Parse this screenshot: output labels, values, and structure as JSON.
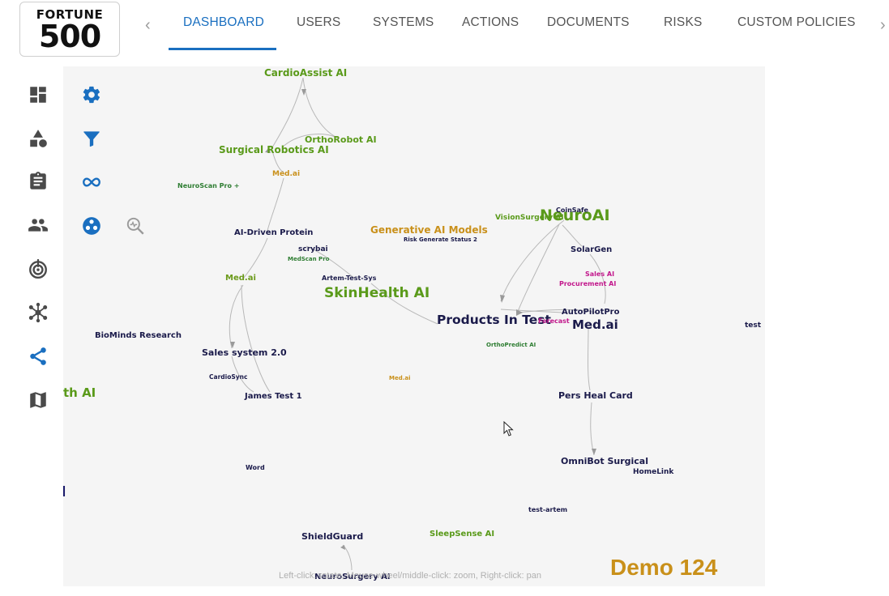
{
  "logo": {
    "line1": "FORTUNE",
    "line2": "500"
  },
  "tabs": [
    {
      "label": "DASHBOARD",
      "active": true
    },
    {
      "label": "USERS"
    },
    {
      "label": "SYSTEMS"
    },
    {
      "label": "ACTIONS"
    },
    {
      "label": "DOCUMENTS"
    },
    {
      "label": "RISKS"
    },
    {
      "label": "CUSTOM POLICIES"
    }
  ],
  "sidebar": {
    "items": [
      {
        "icon": "dashboard-icon"
      },
      {
        "icon": "shapes-icon"
      },
      {
        "icon": "clipboard-icon"
      },
      {
        "icon": "people-icon"
      },
      {
        "icon": "target-icon"
      },
      {
        "icon": "network-icon"
      },
      {
        "icon": "share-icon",
        "active": true
      },
      {
        "icon": "map-icon"
      }
    ]
  },
  "toolbar": {
    "tools": [
      {
        "icon": "gear-icon"
      },
      {
        "icon": "filter-icon"
      },
      {
        "icon": "infinity-icon"
      },
      {
        "icon": "cluster-icon"
      },
      {
        "icon": "zoom-analyze-icon"
      }
    ]
  },
  "graph": {
    "nodes": [
      {
        "label": "CardioAssist AI",
        "color": "#5a9a1a"
      },
      {
        "label": "OrthoRobot AI",
        "color": "#5a9a1a"
      },
      {
        "label": "Surgical Robotics AI",
        "color": "#5a9a1a"
      },
      {
        "label": "Med.ai",
        "color": "#c9901a"
      },
      {
        "label": "NeuroScan Pro +",
        "color": "#2e7d32"
      },
      {
        "label": "AI-Driven Protein",
        "color": "#1a1a4a"
      },
      {
        "label": "scrybai",
        "color": "#1a1a4a"
      },
      {
        "label": "MedScan Pro",
        "color": "#2e7d32"
      },
      {
        "label": "Artem-Test-Sys",
        "color": "#1a1a4a"
      },
      {
        "label": "Med.ai",
        "color": "#6b9a1a"
      },
      {
        "label": "SkinHealth AI",
        "color": "#5a9a1a"
      },
      {
        "label": "Generative AI Models",
        "color": "#c9901a"
      },
      {
        "label": "Risk Generate Status 2",
        "color": "#1a1a4a"
      },
      {
        "label": "VisionSurgery AI",
        "color": "#5a9a1a"
      },
      {
        "label": "NeuroAI",
        "color": "#5a9a1a"
      },
      {
        "label": "CoinSafe",
        "color": "#1a1a4a"
      },
      {
        "label": "SolarGen",
        "color": "#1a1a4a"
      },
      {
        "label": "Sales AI",
        "color": "#c2188c"
      },
      {
        "label": "Procurement AI",
        "color": "#c2188c"
      },
      {
        "label": "AutoPilotPro",
        "color": "#1a1a4a"
      },
      {
        "label": "Products In Test",
        "color": "#1a1a4a"
      },
      {
        "label": "Forecast",
        "color": "#c2188c"
      },
      {
        "label": "Med.ai",
        "color": "#1a1a4a"
      },
      {
        "label": "OrthoPredict AI",
        "color": "#2e7d32"
      },
      {
        "label": "test",
        "color": "#1a1a4a"
      },
      {
        "label": "BioMinds Research",
        "color": "#1a1a4a"
      },
      {
        "label": "Sales system 2.0",
        "color": "#1a1a4a"
      },
      {
        "label": "CardioSync",
        "color": "#1a1a4a"
      },
      {
        "label": "James Test 1",
        "color": "#1a1a4a"
      },
      {
        "label": "Med.ai",
        "color": "#c9901a"
      },
      {
        "label": "th AI",
        "color": "#5a9a1a"
      },
      {
        "label": "Pers Heal Card",
        "color": "#1a1a4a"
      },
      {
        "label": "OmniBot Surgical",
        "color": "#1a1a4a"
      },
      {
        "label": "HomeLink",
        "color": "#1a1a4a"
      },
      {
        "label": "Word",
        "color": "#1a1a4a"
      },
      {
        "label": "test-artem",
        "color": "#1a1a4a"
      },
      {
        "label": "ShieldGuard",
        "color": "#1a1a4a"
      },
      {
        "label": "SleepSense AI",
        "color": "#5a9a1a"
      },
      {
        "label": "NeuroSurgery AI",
        "color": "#1a1a4a"
      },
      {
        "label": "I",
        "color": "#1a1a6a"
      }
    ]
  },
  "hint": "Left-click: rotate, Mouse-wheel/middle-click: zoom, Right-click: pan",
  "demo_label": "Demo 124",
  "colors": {
    "accent": "#1a6fc0",
    "green": "#5a9a1a",
    "gold": "#c9901a",
    "navy": "#1a1a4a",
    "magenta": "#c2188c"
  }
}
